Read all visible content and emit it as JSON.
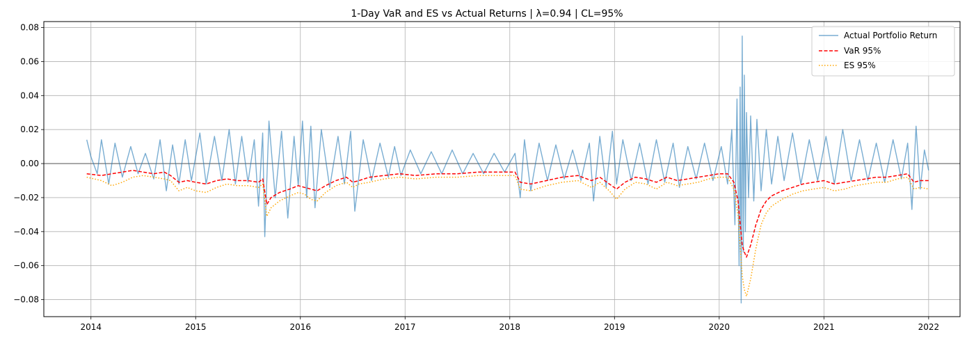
{
  "chart_data": {
    "type": "line",
    "title": "1-Day VaR and ES vs Actual Returns | λ=0.94 | CL=95%",
    "xlabel": "",
    "ylabel": "",
    "xlim": [
      2013.55,
      2022.3
    ],
    "ylim": [
      -0.09,
      0.0835
    ],
    "x_ticks": [
      2014,
      2015,
      2016,
      2017,
      2018,
      2019,
      2020,
      2021,
      2022
    ],
    "x_tick_labels": [
      "2014",
      "2015",
      "2016",
      "2017",
      "2018",
      "2019",
      "2020",
      "2021",
      "2022"
    ],
    "y_ticks": [
      -0.08,
      -0.06,
      -0.04,
      -0.02,
      0.0,
      0.02,
      0.04,
      0.06,
      0.08
    ],
    "y_tick_labels": [
      "−0.08",
      "−0.06",
      "−0.04",
      "−0.02",
      "0.00",
      "0.02",
      "0.04",
      "0.06",
      "0.08"
    ],
    "grid": true,
    "legend_position": "top-right",
    "zero_line": {
      "y": 0.0,
      "color": "#808080"
    },
    "series": [
      {
        "name": "Actual Portfolio Return",
        "color": "#1f77b4",
        "style": "solid",
        "x": [
          2013.96,
          2014.0,
          2014.06,
          2014.1,
          2014.17,
          2014.23,
          2014.3,
          2014.38,
          2014.45,
          2014.52,
          2014.6,
          2014.66,
          2014.72,
          2014.78,
          2014.84,
          2014.9,
          2014.96,
          2015.04,
          2015.1,
          2015.18,
          2015.25,
          2015.32,
          2015.38,
          2015.44,
          2015.5,
          2015.56,
          2015.6,
          2015.64,
          2015.66,
          2015.7,
          2015.76,
          2015.82,
          2015.88,
          2015.94,
          2015.98,
          2016.02,
          2016.06,
          2016.1,
          2016.14,
          2016.2,
          2016.28,
          2016.36,
          2016.42,
          2016.48,
          2016.52,
          2016.6,
          2016.68,
          2016.76,
          2016.84,
          2016.9,
          2016.96,
          2017.05,
          2017.15,
          2017.25,
          2017.35,
          2017.45,
          2017.55,
          2017.65,
          2017.75,
          2017.85,
          2017.95,
          2018.05,
          2018.1,
          2018.14,
          2018.2,
          2018.28,
          2018.36,
          2018.44,
          2018.52,
          2018.6,
          2018.68,
          2018.76,
          2018.8,
          2018.86,
          2018.92,
          2018.98,
          2019.02,
          2019.08,
          2019.16,
          2019.24,
          2019.32,
          2019.4,
          2019.48,
          2019.56,
          2019.62,
          2019.7,
          2019.78,
          2019.86,
          2019.94,
          2020.02,
          2020.08,
          2020.12,
          2020.15,
          2020.17,
          2020.19,
          2020.2,
          2020.21,
          2020.22,
          2020.23,
          2020.24,
          2020.25,
          2020.26,
          2020.28,
          2020.3,
          2020.33,
          2020.36,
          2020.4,
          2020.45,
          2020.5,
          2020.56,
          2020.62,
          2020.7,
          2020.78,
          2020.86,
          2020.94,
          2021.02,
          2021.1,
          2021.18,
          2021.26,
          2021.34,
          2021.42,
          2021.5,
          2021.58,
          2021.66,
          2021.74,
          2021.8,
          2021.84,
          2021.88,
          2021.92,
          2021.96,
          2022.0
        ],
        "y": [
          0.014,
          0.004,
          -0.006,
          0.014,
          -0.012,
          0.012,
          -0.008,
          0.01,
          -0.006,
          0.006,
          -0.009,
          0.014,
          -0.016,
          0.011,
          -0.012,
          0.014,
          -0.01,
          0.018,
          -0.012,
          0.016,
          -0.01,
          0.02,
          -0.012,
          0.016,
          -0.011,
          0.014,
          -0.025,
          0.018,
          -0.043,
          0.025,
          -0.02,
          0.019,
          -0.032,
          0.016,
          -0.013,
          0.025,
          -0.02,
          0.022,
          -0.026,
          0.02,
          -0.014,
          0.016,
          -0.012,
          0.019,
          -0.028,
          0.014,
          -0.01,
          0.012,
          -0.008,
          0.01,
          -0.007,
          0.008,
          -0.006,
          0.007,
          -0.006,
          0.008,
          -0.006,
          0.006,
          -0.006,
          0.006,
          -0.005,
          0.006,
          -0.02,
          0.014,
          -0.016,
          0.012,
          -0.01,
          0.011,
          -0.009,
          0.008,
          -0.01,
          0.012,
          -0.022,
          0.016,
          -0.014,
          0.019,
          -0.012,
          0.014,
          -0.01,
          0.012,
          -0.012,
          0.014,
          -0.011,
          0.012,
          -0.014,
          0.01,
          -0.009,
          0.012,
          -0.01,
          0.01,
          -0.012,
          0.02,
          -0.036,
          0.038,
          -0.06,
          0.045,
          -0.082,
          0.075,
          -0.052,
          0.052,
          -0.04,
          0.03,
          -0.02,
          0.028,
          -0.022,
          0.026,
          -0.016,
          0.02,
          -0.012,
          0.016,
          -0.01,
          0.018,
          -0.012,
          0.014,
          -0.01,
          0.016,
          -0.012,
          0.02,
          -0.01,
          0.014,
          -0.01,
          0.012,
          -0.011,
          0.014,
          -0.009,
          0.012,
          -0.027,
          0.022,
          -0.015,
          0.008,
          -0.004
        ]
      },
      {
        "name": "VaR 95%",
        "color": "#ff0000",
        "style": "dashed",
        "x": [
          2013.96,
          2014.1,
          2014.2,
          2014.3,
          2014.4,
          2014.5,
          2014.6,
          2014.7,
          2014.76,
          2014.84,
          2014.92,
          2015.0,
          2015.1,
          2015.2,
          2015.3,
          2015.4,
          2015.5,
          2015.6,
          2015.64,
          2015.68,
          2015.72,
          2015.8,
          2015.9,
          2015.98,
          2016.04,
          2016.1,
          2016.16,
          2016.24,
          2016.34,
          2016.44,
          2016.5,
          2016.56,
          2016.66,
          2016.8,
          2016.95,
          2017.1,
          2017.3,
          2017.5,
          2017.7,
          2017.9,
          2018.05,
          2018.1,
          2018.2,
          2018.35,
          2018.5,
          2018.65,
          2018.78,
          2018.86,
          2018.95,
          2019.02,
          2019.1,
          2019.2,
          2019.3,
          2019.4,
          2019.5,
          2019.6,
          2019.7,
          2019.8,
          2019.9,
          2020.0,
          2020.08,
          2020.14,
          2020.18,
          2020.2,
          2020.22,
          2020.24,
          2020.26,
          2020.3,
          2020.35,
          2020.4,
          2020.45,
          2020.5,
          2020.6,
          2020.7,
          2020.8,
          2020.9,
          2021.0,
          2021.1,
          2021.2,
          2021.3,
          2021.4,
          2021.5,
          2021.6,
          2021.7,
          2021.8,
          2021.86,
          2021.92,
          2022.0
        ],
        "y": [
          -0.006,
          -0.007,
          -0.006,
          -0.005,
          -0.004,
          -0.005,
          -0.006,
          -0.005,
          -0.007,
          -0.011,
          -0.01,
          -0.011,
          -0.012,
          -0.01,
          -0.009,
          -0.01,
          -0.01,
          -0.011,
          -0.009,
          -0.024,
          -0.02,
          -0.017,
          -0.015,
          -0.013,
          -0.014,
          -0.015,
          -0.016,
          -0.013,
          -0.01,
          -0.008,
          -0.011,
          -0.01,
          -0.008,
          -0.007,
          -0.006,
          -0.007,
          -0.006,
          -0.006,
          -0.005,
          -0.005,
          -0.005,
          -0.011,
          -0.012,
          -0.01,
          -0.008,
          -0.007,
          -0.01,
          -0.008,
          -0.012,
          -0.015,
          -0.011,
          -0.008,
          -0.009,
          -0.011,
          -0.008,
          -0.01,
          -0.009,
          -0.008,
          -0.007,
          -0.006,
          -0.006,
          -0.011,
          -0.022,
          -0.035,
          -0.048,
          -0.052,
          -0.055,
          -0.048,
          -0.036,
          -0.027,
          -0.022,
          -0.019,
          -0.016,
          -0.014,
          -0.012,
          -0.011,
          -0.01,
          -0.012,
          -0.011,
          -0.01,
          -0.009,
          -0.008,
          -0.008,
          -0.007,
          -0.006,
          -0.011,
          -0.01,
          -0.01
        ]
      },
      {
        "name": "ES 95%",
        "color": "#ffa500",
        "style": "dotted",
        "x": [
          2013.96,
          2014.1,
          2014.2,
          2014.3,
          2014.4,
          2014.5,
          2014.6,
          2014.7,
          2014.76,
          2014.84,
          2014.92,
          2015.0,
          2015.1,
          2015.2,
          2015.3,
          2015.4,
          2015.5,
          2015.6,
          2015.64,
          2015.68,
          2015.72,
          2015.8,
          2015.9,
          2015.98,
          2016.04,
          2016.1,
          2016.16,
          2016.24,
          2016.34,
          2016.44,
          2016.5,
          2016.56,
          2016.66,
          2016.8,
          2016.95,
          2017.1,
          2017.3,
          2017.5,
          2017.7,
          2017.9,
          2018.05,
          2018.1,
          2018.2,
          2018.35,
          2018.5,
          2018.65,
          2018.78,
          2018.86,
          2018.95,
          2019.02,
          2019.1,
          2019.2,
          2019.3,
          2019.4,
          2019.5,
          2019.6,
          2019.7,
          2019.8,
          2019.9,
          2020.0,
          2020.08,
          2020.14,
          2020.18,
          2020.2,
          2020.22,
          2020.24,
          2020.26,
          2020.3,
          2020.35,
          2020.4,
          2020.45,
          2020.5,
          2020.6,
          2020.7,
          2020.8,
          2020.9,
          2021.0,
          2021.1,
          2021.2,
          2021.3,
          2021.4,
          2021.5,
          2021.6,
          2021.7,
          2021.8,
          2021.86,
          2021.92,
          2022.0
        ],
        "y": [
          -0.008,
          -0.01,
          -0.013,
          -0.011,
          -0.008,
          -0.007,
          -0.008,
          -0.009,
          -0.01,
          -0.016,
          -0.014,
          -0.016,
          -0.017,
          -0.014,
          -0.012,
          -0.013,
          -0.013,
          -0.014,
          -0.012,
          -0.031,
          -0.026,
          -0.022,
          -0.019,
          -0.017,
          -0.018,
          -0.021,
          -0.022,
          -0.017,
          -0.013,
          -0.011,
          -0.014,
          -0.012,
          -0.011,
          -0.009,
          -0.008,
          -0.009,
          -0.008,
          -0.008,
          -0.007,
          -0.007,
          -0.007,
          -0.015,
          -0.016,
          -0.013,
          -0.011,
          -0.01,
          -0.014,
          -0.011,
          -0.016,
          -0.021,
          -0.015,
          -0.011,
          -0.012,
          -0.015,
          -0.011,
          -0.013,
          -0.012,
          -0.011,
          -0.009,
          -0.008,
          -0.008,
          -0.015,
          -0.03,
          -0.048,
          -0.066,
          -0.074,
          -0.078,
          -0.068,
          -0.05,
          -0.036,
          -0.029,
          -0.025,
          -0.021,
          -0.018,
          -0.016,
          -0.015,
          -0.014,
          -0.016,
          -0.015,
          -0.013,
          -0.012,
          -0.011,
          -0.011,
          -0.009,
          -0.008,
          -0.015,
          -0.014,
          -0.015
        ]
      }
    ]
  }
}
